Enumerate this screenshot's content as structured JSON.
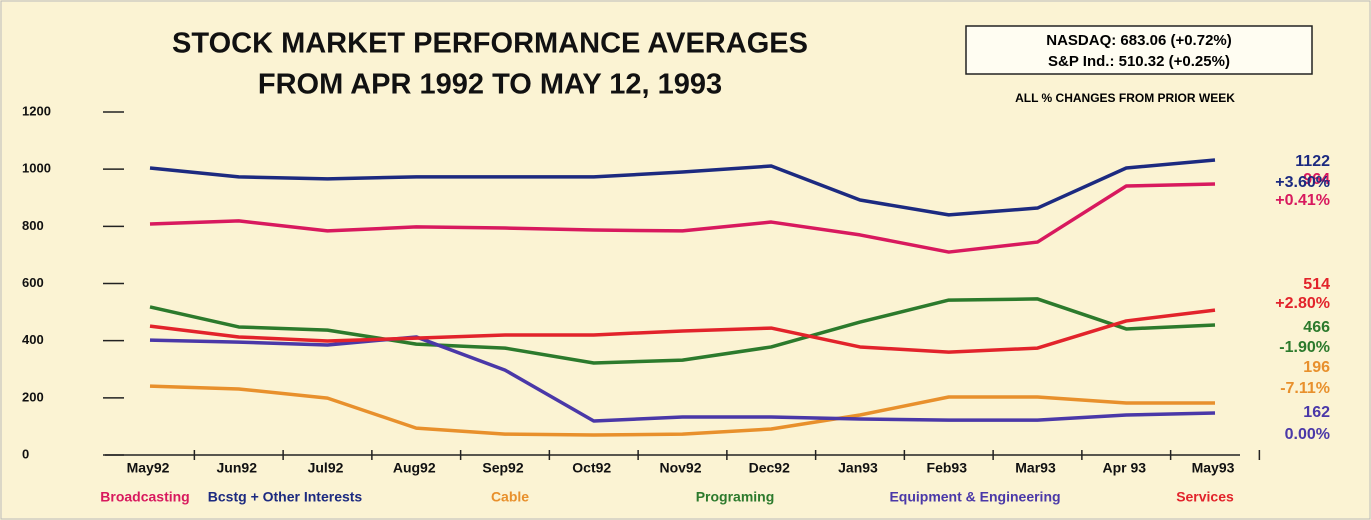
{
  "chart_data": {
    "type": "line",
    "title": [
      "STOCK MARKET PERFORMANCE AVERAGES",
      "FROM APR 1992 TO MAY 12, 1993"
    ],
    "index_box": [
      "NASDAQ: 683.06 (+0.72%)",
      "S&P Ind.: 510.32 (+0.25%)"
    ],
    "note": "ALL % CHANGES FROM PRIOR WEEK",
    "categories": [
      "May92",
      "Jun92",
      "Jul92",
      "Aug92",
      "Sep92",
      "Oct92",
      "Nov92",
      "Dec92",
      "Jan93",
      "Feb93",
      "Mar93",
      "Apr 93",
      "May93"
    ],
    "ylim": [
      0,
      1200
    ],
    "yticks": [
      0,
      200,
      400,
      600,
      800,
      1000,
      1200
    ],
    "series": [
      {
        "name": "Broadcasting",
        "color": "#d8195e",
        "values": [
          808,
          819,
          784,
          798,
          794,
          787,
          784,
          815,
          770,
          710,
          745,
          941,
          948
        ],
        "end_label": [
          "964",
          "+0.41%"
        ]
      },
      {
        "name": "Bcstg + Other Interests",
        "color": "#1c2a80",
        "values": [
          1004,
          973,
          966,
          973,
          973,
          973,
          990,
          1011,
          892,
          840,
          864,
          1004,
          1032
        ],
        "end_label": [
          "1122",
          "+3.60%"
        ]
      },
      {
        "name": "Cable",
        "color": "#e8902c",
        "values": [
          241,
          231,
          199,
          94,
          73,
          70,
          73,
          91,
          140,
          203,
          203,
          182,
          182
        ],
        "end_label": [
          "196",
          "-7.11%"
        ]
      },
      {
        "name": "Programing",
        "color": "#2c7a2c",
        "values": [
          518,
          448,
          437,
          388,
          374,
          322,
          332,
          378,
          465,
          542,
          546,
          441,
          455
        ],
        "end_label": [
          "466",
          "-1.90%"
        ]
      },
      {
        "name": "Equipment & Engineering",
        "color": "#4a38a8",
        "values": [
          402,
          395,
          385,
          413,
          297,
          119,
          133,
          133,
          126,
          122,
          122,
          140,
          147
        ],
        "end_label": [
          "162",
          "0.00%"
        ]
      },
      {
        "name": "Services",
        "color": "#e2232b",
        "values": [
          451,
          413,
          399,
          409,
          420,
          420,
          434,
          444,
          378,
          360,
          374,
          469,
          507
        ],
        "end_label": [
          "514",
          "+2.80%"
        ]
      }
    ]
  }
}
